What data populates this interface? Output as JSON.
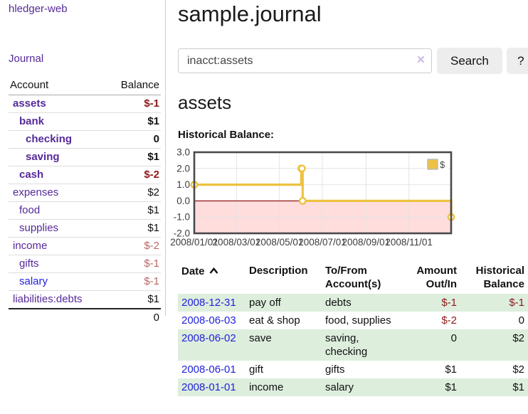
{
  "sidebar": {
    "app_title": "hledger-web",
    "journal_link": "Journal",
    "accounts_header": {
      "account": "Account",
      "balance": "Balance"
    },
    "accounts": [
      {
        "name": "assets",
        "depth": 0,
        "balance": "$-1",
        "bold": true,
        "neg": "strong",
        "link_color": "purple"
      },
      {
        "name": "bank",
        "depth": 1,
        "balance": "$1",
        "bold": true,
        "neg": "none",
        "link_color": "purple"
      },
      {
        "name": "checking",
        "depth": 2,
        "balance": "0",
        "bold": true,
        "neg": "none",
        "link_color": "purple"
      },
      {
        "name": "saving",
        "depth": 2,
        "balance": "$1",
        "bold": true,
        "neg": "none",
        "link_color": "purple"
      },
      {
        "name": "cash",
        "depth": 1,
        "balance": "$-2",
        "bold": true,
        "neg": "strong",
        "link_color": "purple"
      },
      {
        "name": "expenses",
        "depth": 0,
        "balance": "$2",
        "bold": false,
        "neg": "none",
        "link_color": "purple"
      },
      {
        "name": "food",
        "depth": 1,
        "balance": "$1",
        "bold": false,
        "neg": "none",
        "link_color": "purple"
      },
      {
        "name": "supplies",
        "depth": 1,
        "balance": "$1",
        "bold": false,
        "neg": "none",
        "link_color": "purple"
      },
      {
        "name": "income",
        "depth": 0,
        "balance": "$-2",
        "bold": false,
        "neg": "soft",
        "link_color": "purple"
      },
      {
        "name": "gifts",
        "depth": 1,
        "balance": "$-1",
        "bold": false,
        "neg": "soft",
        "link_color": "purple"
      },
      {
        "name": "salary",
        "depth": 1,
        "balance": "$-1",
        "bold": false,
        "neg": "soft",
        "link_color": "blue"
      },
      {
        "name": "liabilities:debts",
        "depth": 0,
        "balance": "$1",
        "bold": false,
        "neg": "none",
        "link_color": "purple"
      }
    ],
    "total": "0"
  },
  "main": {
    "title": "sample.journal",
    "search": {
      "value": "inacct:assets",
      "clear_icon": "×",
      "button_label": "Search",
      "help_label": "?"
    },
    "account_heading": "assets",
    "chart_title": "Historical Balance:"
  },
  "chart_data": {
    "type": "line",
    "title": "Historical Balance:",
    "series": [
      {
        "name": "$",
        "color": "#edc240",
        "step": true,
        "points": [
          [
            "2008-01-01",
            1
          ],
          [
            "2008-06-01",
            2
          ],
          [
            "2008-06-02",
            2
          ],
          [
            "2008-06-03",
            0
          ],
          [
            "2008-12-31",
            -1
          ]
        ]
      }
    ],
    "x_ticks": [
      "2008/01/01",
      "2008/03/01",
      "2008/05/01",
      "2008/07/01",
      "2008/09/01",
      "2008/11/01"
    ],
    "y_ticks": [
      -2.0,
      -1.0,
      0.0,
      1.0,
      2.0,
      3.0
    ],
    "xlim": [
      "2008-01-01",
      "2008-12-31"
    ],
    "ylim": [
      -2,
      3
    ],
    "grid": true,
    "legend": {
      "position": "top-right",
      "label": "$"
    },
    "colors": {
      "grid_line": "#e4e4e4",
      "border": "#4a4a4a",
      "negative_region": "#ffdddd",
      "zero_line": "#992222",
      "tick_label": "#3c3c3c"
    }
  },
  "register": {
    "headers": {
      "date": "Date",
      "description": "Description",
      "accounts": "To/From Account(s)",
      "amount": "Amount Out/In",
      "balance": "Historical Balance"
    },
    "rows": [
      {
        "date": "2008-12-31",
        "description": "pay off",
        "accounts": "debts",
        "amount": "$-1",
        "amount_neg": true,
        "balance": "$-1",
        "balance_neg": true
      },
      {
        "date": "2008-06-03",
        "description": "eat & shop",
        "accounts": "food, supplies",
        "amount": "$-2",
        "amount_neg": true,
        "balance": "0",
        "balance_neg": false
      },
      {
        "date": "2008-06-02",
        "description": "save",
        "accounts": "saving, checking",
        "amount": "0",
        "amount_neg": false,
        "balance": "$2",
        "balance_neg": false
      },
      {
        "date": "2008-06-01",
        "description": "gift",
        "accounts": "gifts",
        "amount": "$1",
        "amount_neg": false,
        "balance": "$2",
        "balance_neg": false
      },
      {
        "date": "2008-01-01",
        "description": "income",
        "accounts": "salary",
        "amount": "$1",
        "amount_neg": false,
        "balance": "$1",
        "balance_neg": false
      }
    ]
  }
}
